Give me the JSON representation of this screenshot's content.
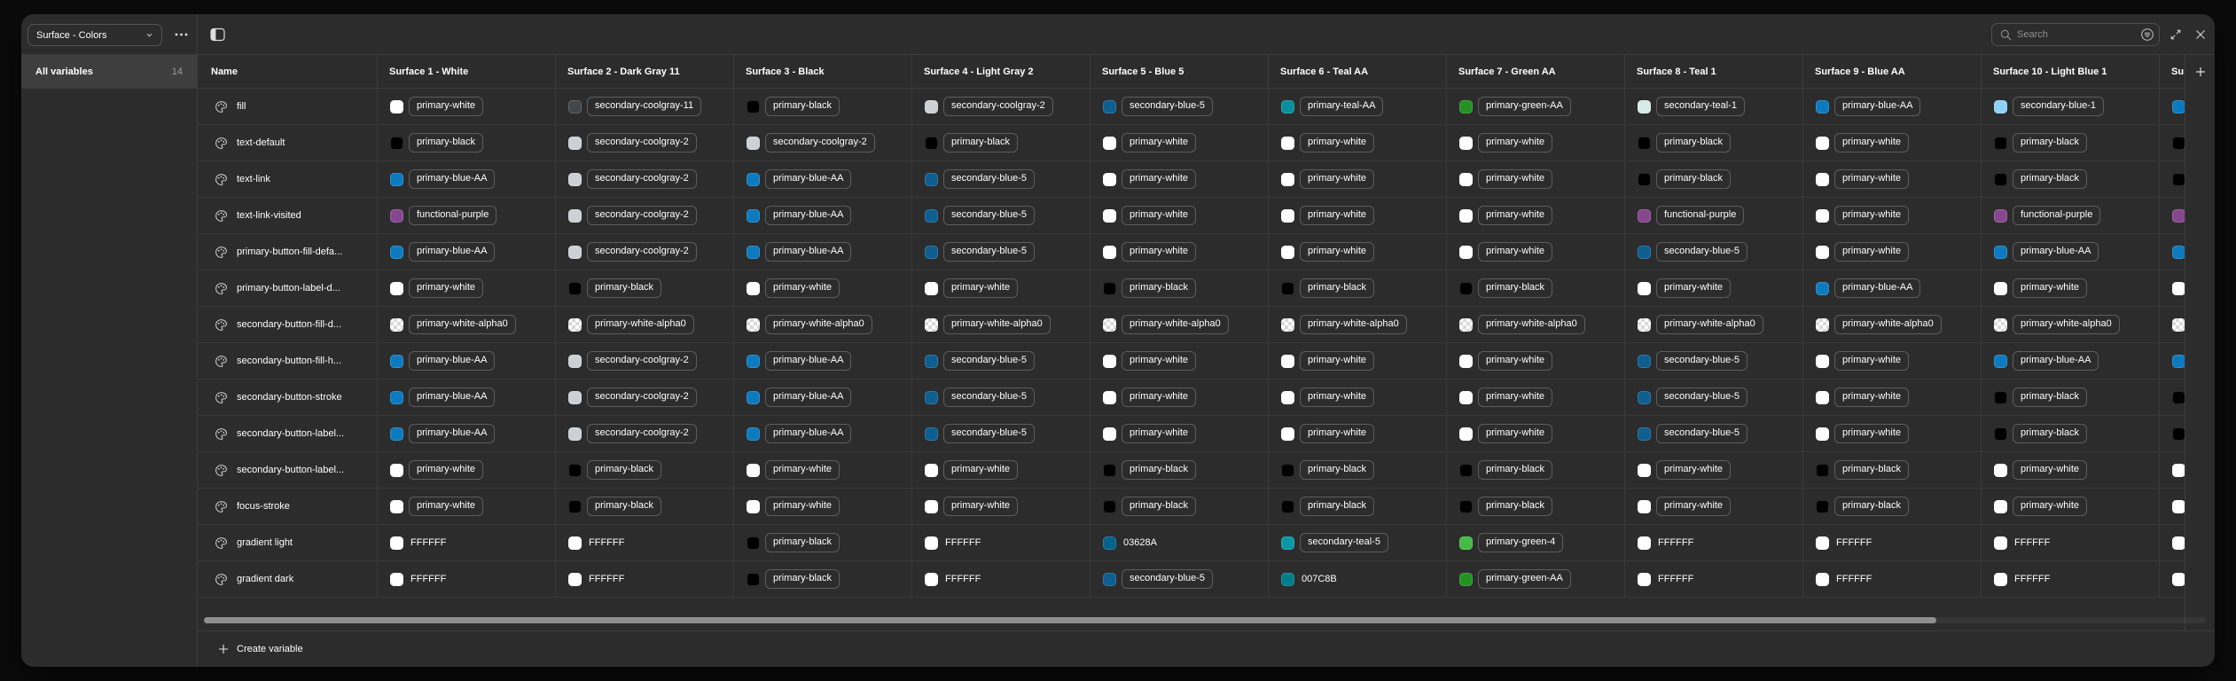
{
  "header": {
    "collection_label": "Surface - Colors",
    "search_placeholder": "Search",
    "icons": [
      "chevron-down-icon",
      "more-options-icon",
      "toggle-sidebar-icon",
      "search-icon",
      "filter-icon",
      "expand-icon",
      "close-icon",
      "plus-icon"
    ]
  },
  "sidebar": {
    "items": [
      {
        "label": "All variables",
        "count": "14",
        "selected": true
      }
    ]
  },
  "table": {
    "name_header": "Name",
    "mode_headers": [
      "Surface 1 - White",
      "Surface 2 - Dark Gray 11",
      "Surface 3 - Black",
      "Surface 4 - Light Gray 2",
      "Surface 5 - Blue 5",
      "Surface 6 - Teal AA",
      "Surface 7 - Green AA",
      "Surface 8 - Teal 1",
      "Surface 9 - Blue AA",
      "Surface 10 - Light Blue 1",
      "Su"
    ],
    "rows": [
      {
        "name": "fill",
        "cells": [
          [
            "primary-white",
            "p"
          ],
          [
            "secondary-coolgray-11",
            "p"
          ],
          [
            "primary-black",
            "p"
          ],
          [
            "secondary-coolgray-2",
            "p"
          ],
          [
            "secondary-blue-5",
            "p"
          ],
          [
            "primary-teal-AA",
            "p"
          ],
          [
            "primary-green-AA",
            "p"
          ],
          [
            "secondary-teal-1",
            "p"
          ],
          [
            "primary-blue-AA",
            "p"
          ],
          [
            "secondary-blue-1",
            "p"
          ],
          [
            "#0d7abf",
            "s"
          ]
        ]
      },
      {
        "name": "text-default",
        "cells": [
          [
            "primary-black",
            "p"
          ],
          [
            "secondary-coolgray-2",
            "p"
          ],
          [
            "secondary-coolgray-2",
            "p"
          ],
          [
            "primary-black",
            "p"
          ],
          [
            "primary-white",
            "p"
          ],
          [
            "primary-white",
            "p"
          ],
          [
            "primary-white",
            "p"
          ],
          [
            "primary-black",
            "p"
          ],
          [
            "primary-white",
            "p"
          ],
          [
            "primary-black",
            "p"
          ],
          [
            "#000000",
            "s"
          ]
        ]
      },
      {
        "name": "text-link",
        "cells": [
          [
            "primary-blue-AA",
            "p"
          ],
          [
            "secondary-coolgray-2",
            "p"
          ],
          [
            "primary-blue-AA",
            "p"
          ],
          [
            "secondary-blue-5",
            "p"
          ],
          [
            "primary-white",
            "p"
          ],
          [
            "primary-white",
            "p"
          ],
          [
            "primary-white",
            "p"
          ],
          [
            "primary-black",
            "p"
          ],
          [
            "primary-white",
            "p"
          ],
          [
            "primary-black",
            "p"
          ],
          [
            "#000000",
            "s"
          ]
        ]
      },
      {
        "name": "text-link-visited",
        "cells": [
          [
            "functional-purple",
            "p"
          ],
          [
            "secondary-coolgray-2",
            "p"
          ],
          [
            "primary-blue-AA",
            "p"
          ],
          [
            "secondary-blue-5",
            "p"
          ],
          [
            "primary-white",
            "p"
          ],
          [
            "primary-white",
            "p"
          ],
          [
            "primary-white",
            "p"
          ],
          [
            "functional-purple",
            "p"
          ],
          [
            "primary-white",
            "p"
          ],
          [
            "functional-purple",
            "p"
          ],
          [
            "#87478f",
            "s"
          ]
        ]
      },
      {
        "name": "primary-button-fill-defa...",
        "cells": [
          [
            "primary-blue-AA",
            "p"
          ],
          [
            "secondary-coolgray-2",
            "p"
          ],
          [
            "primary-blue-AA",
            "p"
          ],
          [
            "secondary-blue-5",
            "p"
          ],
          [
            "primary-white",
            "p"
          ],
          [
            "primary-white",
            "p"
          ],
          [
            "primary-white",
            "p"
          ],
          [
            "secondary-blue-5",
            "p"
          ],
          [
            "primary-white",
            "p"
          ],
          [
            "primary-blue-AA",
            "p"
          ],
          [
            "#0d7abf",
            "s"
          ]
        ]
      },
      {
        "name": "primary-button-label-d...",
        "cells": [
          [
            "primary-white",
            "p"
          ],
          [
            "primary-black",
            "p"
          ],
          [
            "primary-white",
            "p"
          ],
          [
            "primary-white",
            "p"
          ],
          [
            "primary-black",
            "p"
          ],
          [
            "primary-black",
            "p"
          ],
          [
            "primary-black",
            "p"
          ],
          [
            "primary-white",
            "p"
          ],
          [
            "primary-blue-AA",
            "p"
          ],
          [
            "primary-white",
            "p"
          ],
          [
            "#ffffff",
            "s"
          ]
        ]
      },
      {
        "name": "secondary-button-fill-d...",
        "cells": [
          [
            "primary-white-alpha0",
            "p"
          ],
          [
            "primary-white-alpha0",
            "p"
          ],
          [
            "primary-white-alpha0",
            "p"
          ],
          [
            "primary-white-alpha0",
            "p"
          ],
          [
            "primary-white-alpha0",
            "p"
          ],
          [
            "primary-white-alpha0",
            "p"
          ],
          [
            "primary-white-alpha0",
            "p"
          ],
          [
            "primary-white-alpha0",
            "p"
          ],
          [
            "primary-white-alpha0",
            "p"
          ],
          [
            "primary-white-alpha0",
            "p"
          ],
          [
            "checker",
            "s"
          ]
        ]
      },
      {
        "name": "secondary-button-fill-h...",
        "cells": [
          [
            "primary-blue-AA",
            "p"
          ],
          [
            "secondary-coolgray-2",
            "p"
          ],
          [
            "primary-blue-AA",
            "p"
          ],
          [
            "secondary-blue-5",
            "p"
          ],
          [
            "primary-white",
            "p"
          ],
          [
            "primary-white",
            "p"
          ],
          [
            "primary-white",
            "p"
          ],
          [
            "secondary-blue-5",
            "p"
          ],
          [
            "primary-white",
            "p"
          ],
          [
            "primary-blue-AA",
            "p"
          ],
          [
            "#0d7abf",
            "s"
          ]
        ]
      },
      {
        "name": "secondary-button-stroke",
        "cells": [
          [
            "primary-blue-AA",
            "p"
          ],
          [
            "secondary-coolgray-2",
            "p"
          ],
          [
            "primary-blue-AA",
            "p"
          ],
          [
            "secondary-blue-5",
            "p"
          ],
          [
            "primary-white",
            "p"
          ],
          [
            "primary-white",
            "p"
          ],
          [
            "primary-white",
            "p"
          ],
          [
            "secondary-blue-5",
            "p"
          ],
          [
            "primary-white",
            "p"
          ],
          [
            "primary-black",
            "p"
          ],
          [
            "#000000",
            "s"
          ]
        ]
      },
      {
        "name": "secondary-button-label...",
        "cells": [
          [
            "primary-blue-AA",
            "p"
          ],
          [
            "secondary-coolgray-2",
            "p"
          ],
          [
            "primary-blue-AA",
            "p"
          ],
          [
            "secondary-blue-5",
            "p"
          ],
          [
            "primary-white",
            "p"
          ],
          [
            "primary-white",
            "p"
          ],
          [
            "primary-white",
            "p"
          ],
          [
            "secondary-blue-5",
            "p"
          ],
          [
            "primary-white",
            "p"
          ],
          [
            "primary-black",
            "p"
          ],
          [
            "#000000",
            "s"
          ]
        ]
      },
      {
        "name": "secondary-button-label...",
        "cells": [
          [
            "primary-white",
            "p"
          ],
          [
            "primary-black",
            "p"
          ],
          [
            "primary-white",
            "p"
          ],
          [
            "primary-white",
            "p"
          ],
          [
            "primary-black",
            "p"
          ],
          [
            "primary-black",
            "p"
          ],
          [
            "primary-black",
            "p"
          ],
          [
            "primary-white",
            "p"
          ],
          [
            "primary-black",
            "p"
          ],
          [
            "primary-white",
            "p"
          ],
          [
            "#ffffff",
            "s"
          ]
        ]
      },
      {
        "name": "focus-stroke",
        "cells": [
          [
            "primary-white",
            "p"
          ],
          [
            "primary-black",
            "p"
          ],
          [
            "primary-white",
            "p"
          ],
          [
            "primary-white",
            "p"
          ],
          [
            "primary-black",
            "p"
          ],
          [
            "primary-black",
            "p"
          ],
          [
            "primary-black",
            "p"
          ],
          [
            "primary-white",
            "p"
          ],
          [
            "primary-black",
            "p"
          ],
          [
            "primary-white",
            "p"
          ],
          [
            "#ffffff",
            "s"
          ]
        ]
      },
      {
        "name": "gradient light",
        "cells": [
          [
            "FFFFFF",
            "h"
          ],
          [
            "FFFFFF",
            "h"
          ],
          [
            "primary-black",
            "p"
          ],
          [
            "FFFFFF",
            "h"
          ],
          [
            "03628A",
            "h"
          ],
          [
            "secondary-teal-5",
            "p"
          ],
          [
            "primary-green-4",
            "p"
          ],
          [
            "FFFFFF",
            "h"
          ],
          [
            "FFFFFF",
            "h"
          ],
          [
            "FFFFFF",
            "h"
          ],
          [
            "#ffffff",
            "s"
          ]
        ]
      },
      {
        "name": "gradient dark",
        "cells": [
          [
            "FFFFFF",
            "h"
          ],
          [
            "FFFFFF",
            "h"
          ],
          [
            "primary-black",
            "p"
          ],
          [
            "FFFFFF",
            "h"
          ],
          [
            "secondary-blue-5",
            "p"
          ],
          [
            "007C8B",
            "h"
          ],
          [
            "primary-green-AA",
            "p"
          ],
          [
            "FFFFFF",
            "h"
          ],
          [
            "FFFFFF",
            "h"
          ],
          [
            "FFFFFF",
            "h"
          ],
          [
            "#ffffff",
            "s"
          ]
        ]
      }
    ]
  },
  "palette": {
    "primary-white": "#ffffff",
    "primary-black": "#000000",
    "primary-blue-AA": "#0d7abf",
    "secondary-blue-5": "#0e5e90",
    "secondary-blue-1": "#8ed2f8",
    "secondary-coolgray-11": "#42474e",
    "secondary-coolgray-2": "#cdd1d5",
    "functional-purple": "#87478f",
    "primary-teal-AA": "#0b8e9c",
    "secondary-teal-5": "#0b97a4",
    "secondary-teal-1": "#d8eae5",
    "primary-green-AA": "#239123",
    "primary-green-4": "#46ba46",
    "FFFFFF": "#ffffff",
    "03628A": "#03628a",
    "007C8B": "#007c8b"
  },
  "footer": {
    "create_label": "Create variable"
  },
  "colors": {
    "outer_bg": "#0b0b0b",
    "panel_bg": "#2c2c2c",
    "divider": "#3c3c3c",
    "selected_row_bg": "#3e3e3e",
    "pill_border": "#5d5d5d",
    "placeholder_text": "#8f8f8f",
    "scroll_thumb": "#8f8f8f"
  }
}
